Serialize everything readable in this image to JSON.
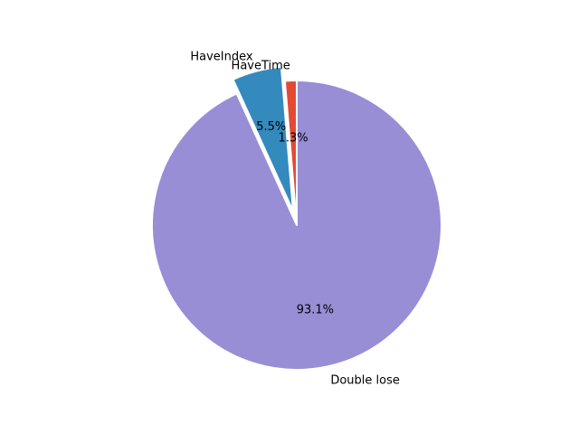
{
  "chart_data": {
    "type": "pie",
    "title": "",
    "slices": [
      {
        "label": "HaveTime",
        "value": 1.3,
        "pct_label": "1.3%",
        "color": "#E24A33",
        "explode": 0.0
      },
      {
        "label": "HaveIndex",
        "value": 5.5,
        "pct_label": "5.5%",
        "color": "#348ABD",
        "explode": 0.1
      },
      {
        "label": "Double lose",
        "value": 93.1,
        "pct_label": "93.1%",
        "color": "#988ED5",
        "explode": 0.0
      }
    ],
    "start_angle_deg": 90,
    "direction": "counterclockwise",
    "legend": "none"
  }
}
